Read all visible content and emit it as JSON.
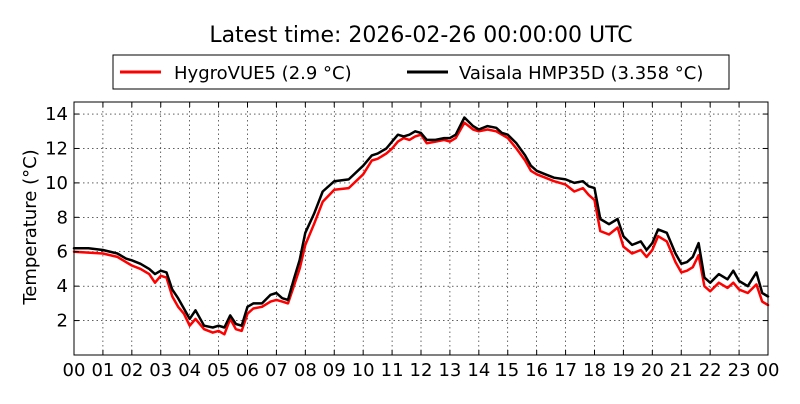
{
  "chart_data": {
    "type": "line",
    "title": "Latest time: 2026-02-26 00:00:00 UTC",
    "xlabel": "",
    "ylabel": "Temperature (°C)",
    "xlim": [
      0,
      24
    ],
    "ylim": [
      0,
      14.7
    ],
    "xtick_labels": [
      "00",
      "01",
      "02",
      "03",
      "04",
      "05",
      "06",
      "07",
      "08",
      "09",
      "10",
      "11",
      "12",
      "13",
      "14",
      "15",
      "16",
      "17",
      "18",
      "19",
      "20",
      "21",
      "22",
      "23",
      "00"
    ],
    "ytick_labels": [
      "2",
      "4",
      "6",
      "8",
      "10",
      "12",
      "14"
    ],
    "grid": true,
    "legend_placement": "top",
    "series": [
      {
        "name": "HygroVUE5 (2.9 °C)",
        "color": "#ff0000",
        "x": [
          0,
          0.5,
          1,
          1.5,
          1.8,
          2,
          2.3,
          2.6,
          2.8,
          3,
          3.2,
          3.4,
          3.6,
          3.8,
          4,
          4.2,
          4.5,
          4.8,
          5,
          5.2,
          5.4,
          5.6,
          5.8,
          6,
          6.2,
          6.5,
          6.8,
          7,
          7.2,
          7.4,
          7.6,
          7.8,
          8,
          8.3,
          8.6,
          9,
          9.5,
          10,
          10.3,
          10.5,
          10.8,
          11,
          11.2,
          11.4,
          11.6,
          11.8,
          12,
          12.2,
          12.5,
          12.8,
          13,
          13.2,
          13.5,
          13.8,
          14,
          14.3,
          14.6,
          14.8,
          15,
          15.3,
          15.6,
          15.8,
          16,
          16.3,
          16.6,
          17,
          17.3,
          17.6,
          17.8,
          18,
          18.2,
          18.5,
          18.8,
          19,
          19.3,
          19.6,
          19.8,
          20,
          20.2,
          20.5,
          20.8,
          21,
          21.2,
          21.4,
          21.6,
          21.8,
          22,
          22.3,
          22.6,
          22.8,
          23,
          23.3,
          23.6,
          23.8,
          24
        ],
        "values": [
          6.0,
          5.95,
          5.9,
          5.7,
          5.4,
          5.2,
          5.0,
          4.7,
          4.2,
          4.6,
          4.5,
          3.4,
          2.8,
          2.4,
          1.7,
          2.1,
          1.5,
          1.3,
          1.4,
          1.2,
          2.1,
          1.5,
          1.4,
          2.4,
          2.7,
          2.8,
          3.1,
          3.2,
          3.1,
          3.0,
          4.0,
          5.0,
          6.4,
          7.6,
          8.9,
          9.6,
          9.7,
          10.5,
          11.3,
          11.4,
          11.7,
          12.0,
          12.4,
          12.6,
          12.5,
          12.7,
          12.8,
          12.3,
          12.4,
          12.5,
          12.4,
          12.6,
          13.5,
          13.1,
          13.0,
          13.1,
          13.0,
          12.8,
          12.6,
          12.0,
          11.3,
          10.7,
          10.5,
          10.3,
          10.1,
          9.9,
          9.5,
          9.7,
          9.3,
          9.0,
          7.2,
          7.0,
          7.4,
          6.3,
          5.9,
          6.1,
          5.7,
          6.1,
          6.9,
          6.6,
          5.4,
          4.8,
          4.9,
          5.1,
          5.8,
          4.0,
          3.7,
          4.2,
          3.9,
          4.2,
          3.8,
          3.6,
          4.1,
          3.1,
          2.9
        ]
      },
      {
        "name": "Vaisala HMP35D (3.358 °C)",
        "color": "#000000",
        "x": [
          0,
          0.5,
          1,
          1.5,
          1.8,
          2,
          2.3,
          2.6,
          2.8,
          3,
          3.2,
          3.4,
          3.6,
          3.8,
          4,
          4.2,
          4.5,
          4.8,
          5,
          5.2,
          5.4,
          5.6,
          5.8,
          6,
          6.2,
          6.5,
          6.8,
          7,
          7.2,
          7.4,
          7.6,
          7.8,
          8,
          8.3,
          8.6,
          9,
          9.5,
          10,
          10.3,
          10.5,
          10.8,
          11,
          11.2,
          11.4,
          11.6,
          11.8,
          12,
          12.2,
          12.5,
          12.8,
          13,
          13.2,
          13.5,
          13.8,
          14,
          14.3,
          14.6,
          14.8,
          15,
          15.3,
          15.6,
          15.8,
          16,
          16.3,
          16.6,
          17,
          17.3,
          17.6,
          17.8,
          18,
          18.2,
          18.5,
          18.8,
          19,
          19.3,
          19.6,
          19.8,
          20,
          20.2,
          20.5,
          20.8,
          21,
          21.2,
          21.4,
          21.6,
          21.8,
          22,
          22.3,
          22.6,
          22.8,
          23,
          23.3,
          23.6,
          23.8,
          24
        ],
        "values": [
          6.2,
          6.2,
          6.1,
          5.9,
          5.6,
          5.5,
          5.3,
          5.0,
          4.7,
          4.9,
          4.8,
          3.8,
          3.3,
          2.7,
          2.1,
          2.6,
          1.7,
          1.6,
          1.7,
          1.6,
          2.3,
          1.8,
          1.7,
          2.8,
          3.0,
          3.0,
          3.5,
          3.6,
          3.3,
          3.2,
          4.4,
          5.5,
          7.1,
          8.2,
          9.5,
          10.1,
          10.2,
          11.0,
          11.6,
          11.7,
          12.0,
          12.4,
          12.8,
          12.7,
          12.8,
          13.0,
          12.9,
          12.5,
          12.5,
          12.6,
          12.6,
          12.8,
          13.8,
          13.3,
          13.1,
          13.3,
          13.2,
          12.9,
          12.8,
          12.3,
          11.6,
          11.0,
          10.7,
          10.5,
          10.3,
          10.2,
          10.0,
          10.1,
          9.8,
          9.7,
          7.9,
          7.6,
          7.9,
          6.9,
          6.4,
          6.6,
          6.1,
          6.5,
          7.3,
          7.1,
          5.9,
          5.3,
          5.4,
          5.7,
          6.5,
          4.5,
          4.2,
          4.7,
          4.4,
          4.9,
          4.3,
          4.0,
          4.8,
          3.6,
          3.4
        ]
      }
    ]
  }
}
